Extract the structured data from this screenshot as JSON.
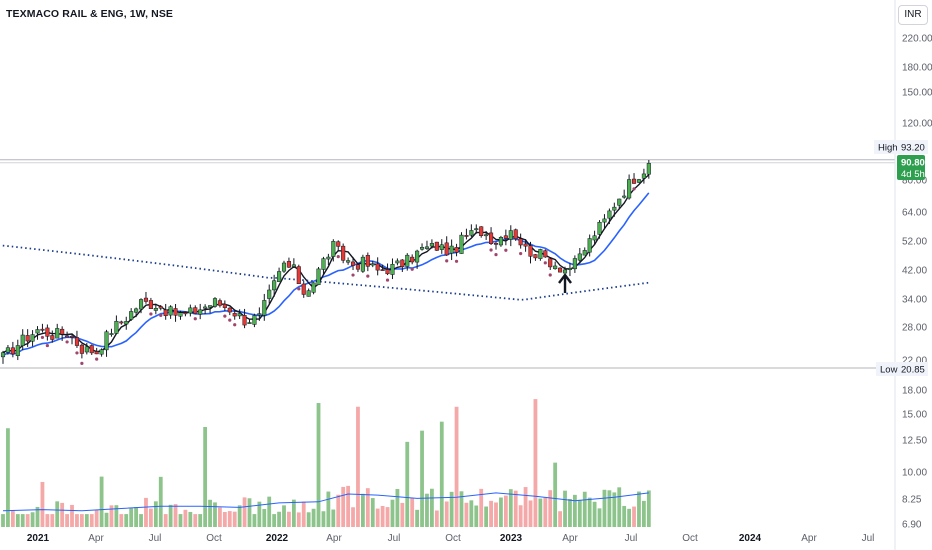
{
  "header": {
    "title": "TEXMACO RAIL & ENG, 1W, NSE",
    "currency": "INR"
  },
  "price_axis_labels": [
    "220.00",
    "180.00",
    "150.00",
    "120.00",
    "80.00",
    "64.00",
    "52.00",
    "42.00",
    "34.00",
    "28.00",
    "22.00"
  ],
  "volume_axis_labels": [
    "18.00",
    "15.00",
    "12.50",
    "10.00",
    "8.25",
    "6.90"
  ],
  "time_axis_labels": [
    {
      "text": "2021",
      "bold": true
    },
    {
      "text": "Apr",
      "bold": false
    },
    {
      "text": "Jul",
      "bold": false
    },
    {
      "text": "Oct",
      "bold": false
    },
    {
      "text": "2022",
      "bold": true
    },
    {
      "text": "Apr",
      "bold": false
    },
    {
      "text": "Jul",
      "bold": false
    },
    {
      "text": "Oct",
      "bold": false
    },
    {
      "text": "2023",
      "bold": true
    },
    {
      "text": "Apr",
      "bold": false
    },
    {
      "text": "Jul",
      "bold": false
    },
    {
      "text": "Oct",
      "bold": false
    },
    {
      "text": "2024",
      "bold": true
    },
    {
      "text": "Apr",
      "bold": false
    },
    {
      "text": "Jul",
      "bold": false
    }
  ],
  "markers": {
    "high": {
      "label": "High",
      "value": "93.20"
    },
    "low": {
      "label": "Low",
      "value": "20.85"
    },
    "last": {
      "value": "90.80",
      "countdown": "4d 5h"
    }
  },
  "colors": {
    "up": "#26a69a",
    "up_candle": "#4caf50",
    "down": "#e53935",
    "volume_up": "#8dc48c",
    "volume_down": "#f5a8a8",
    "ma_fast": "#131722",
    "ma_medium": "#2962ff",
    "ma_slow": "#1a3c8c",
    "last_tag": "#2e9e4f"
  },
  "chart_data": {
    "type": "candlestick",
    "scale": "log",
    "timeframe": "1W",
    "symbol": "TEXMACO RAIL & ENG",
    "exchange": "NSE",
    "y_axis_ticks": [
      220,
      180,
      150,
      120,
      80,
      64,
      52,
      42,
      34,
      28,
      22
    ],
    "volume_axis_ticks": [
      18.0,
      15.0,
      12.5,
      10.0,
      8.25,
      6.9
    ],
    "high": 93.2,
    "low": 20.85,
    "last": 90.8,
    "close_path": [
      {
        "week": 0,
        "close": 22.5
      },
      {
        "week": 4,
        "close": 25.5
      },
      {
        "week": 7,
        "close": 27.5
      },
      {
        "week": 10,
        "close": 26.5
      },
      {
        "week": 13,
        "close": 27.0
      },
      {
        "week": 16,
        "close": 24.0
      },
      {
        "week": 19,
        "close": 23.5
      },
      {
        "week": 22,
        "close": 27.5
      },
      {
        "week": 25,
        "close": 30.0
      },
      {
        "week": 28,
        "close": 33.5
      },
      {
        "week": 31,
        "close": 33.0
      },
      {
        "week": 34,
        "close": 31.0
      },
      {
        "week": 37,
        "close": 30.5
      },
      {
        "week": 40,
        "close": 32.0
      },
      {
        "week": 43,
        "close": 33.5
      },
      {
        "week": 46,
        "close": 32.0
      },
      {
        "week": 49,
        "close": 29.5
      },
      {
        "week": 52,
        "close": 30.0
      },
      {
        "week": 55,
        "close": 38.0
      },
      {
        "week": 57,
        "close": 44.0
      },
      {
        "week": 59,
        "close": 42.0
      },
      {
        "week": 61,
        "close": 36.0
      },
      {
        "week": 63,
        "close": 39.0
      },
      {
        "week": 65,
        "close": 45.0
      },
      {
        "week": 67,
        "close": 50.0
      },
      {
        "week": 69,
        "close": 46.0
      },
      {
        "week": 71,
        "close": 44.0
      },
      {
        "week": 73,
        "close": 44.5
      },
      {
        "week": 76,
        "close": 42.0
      },
      {
        "week": 79,
        "close": 43.0
      },
      {
        "week": 82,
        "close": 45.0
      },
      {
        "week": 85,
        "close": 49.0
      },
      {
        "week": 88,
        "close": 50.0
      },
      {
        "week": 91,
        "close": 48.0
      },
      {
        "week": 94,
        "close": 54.0
      },
      {
        "week": 97,
        "close": 56.0
      },
      {
        "week": 100,
        "close": 52.0
      },
      {
        "week": 103,
        "close": 57.0
      },
      {
        "week": 106,
        "close": 49.0
      },
      {
        "week": 109,
        "close": 47.0
      },
      {
        "week": 112,
        "close": 44.0
      },
      {
        "week": 114,
        "close": 42.5
      },
      {
        "week": 116,
        "close": 44.0
      },
      {
        "week": 118,
        "close": 49.0
      },
      {
        "week": 120,
        "close": 55.0
      },
      {
        "week": 122,
        "close": 60.0
      },
      {
        "week": 124,
        "close": 68.0
      },
      {
        "week": 126,
        "close": 75.0
      },
      {
        "week": 128,
        "close": 82.0
      },
      {
        "week": 130,
        "close": 87.0
      },
      {
        "week": 131,
        "close": 90.8
      }
    ],
    "volume_path": [
      {
        "week": 0,
        "volume": 7.2
      },
      {
        "week": 8,
        "volume": 7.3
      },
      {
        "week": 16,
        "volume": 7.2
      },
      {
        "week": 24,
        "volume": 7.4
      },
      {
        "week": 32,
        "volume": 7.6
      },
      {
        "week": 40,
        "volume": 7.6
      },
      {
        "week": 48,
        "volume": 7.5
      },
      {
        "week": 56,
        "volume": 7.9
      },
      {
        "week": 64,
        "volume": 8.0
      },
      {
        "week": 70,
        "volume": 8.7
      },
      {
        "week": 76,
        "volume": 8.6
      },
      {
        "week": 84,
        "volume": 8.3
      },
      {
        "week": 92,
        "volume": 8.4
      },
      {
        "week": 100,
        "volume": 8.8
      },
      {
        "week": 108,
        "volume": 8.5
      },
      {
        "week": 116,
        "volume": 8.1
      },
      {
        "week": 124,
        "volume": 8.4
      },
      {
        "week": 131,
        "volume": 8.8
      }
    ],
    "annotation": {
      "type": "arrow",
      "direction": "up",
      "week": 114
    }
  }
}
